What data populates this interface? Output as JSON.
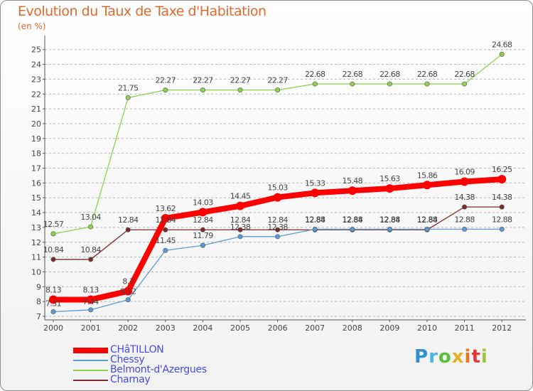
{
  "chart_data": {
    "type": "line",
    "title": "Evolution du Taux de Taxe d'Habitation",
    "ylabel": "(en %)",
    "xlabel": "",
    "x": [
      "2000",
      "2001",
      "2002",
      "2003",
      "2004",
      "2005",
      "2006",
      "2007",
      "2008",
      "2009",
      "2010",
      "2011",
      "2012"
    ],
    "ylim": [
      7,
      25
    ],
    "yticks": [
      7,
      8,
      9,
      10,
      11,
      12,
      13,
      14,
      15,
      16,
      17,
      18,
      19,
      20,
      21,
      22,
      23,
      24,
      25
    ],
    "grid": "horizontal dashed",
    "legend_position": "bottom-left",
    "series": [
      {
        "name": "CHâTILLON",
        "color": "#ff0000",
        "values": [
          8.13,
          8.13,
          8.7,
          13.62,
          14.03,
          14.45,
          15.03,
          15.33,
          15.48,
          15.63,
          15.86,
          16.09,
          16.25
        ],
        "labels": [
          "8.13",
          "8.13",
          "8.7",
          "13.62",
          "14.03",
          "14.45",
          "15.03",
          "15.33",
          "15.48",
          "15.63",
          "15.86",
          "16.09",
          "16.25"
        ]
      },
      {
        "name": "Chessy",
        "color": "#5b9bd5",
        "values": [
          7.31,
          7.44,
          8.12,
          11.45,
          11.79,
          12.38,
          12.38,
          12.88,
          12.88,
          12.88,
          12.88,
          12.88,
          12.88
        ],
        "labels": [
          "7.31",
          "7.44",
          "8.12",
          "11.45",
          "11.79",
          "12.38",
          "12.38",
          "12.88",
          "12.88",
          "12.88",
          "12.88",
          "12.88",
          "12.88"
        ]
      },
      {
        "name": "Belmont-d'Azergues",
        "color": "#8fd14f",
        "values": [
          12.57,
          13.04,
          21.75,
          22.27,
          22.27,
          22.27,
          22.27,
          22.68,
          22.68,
          22.68,
          22.68,
          22.68,
          24.68
        ],
        "labels": [
          "12.57",
          "13.04",
          "21.75",
          "22.27",
          "22.27",
          "22.27",
          "22.27",
          "22.68",
          "22.68",
          "22.68",
          "22.68",
          "22.68",
          "24.68"
        ]
      },
      {
        "name": "Charnay",
        "color": "#7b2b2b",
        "values": [
          10.84,
          10.84,
          12.84,
          12.84,
          12.84,
          12.84,
          12.84,
          12.84,
          12.84,
          12.84,
          12.84,
          14.38,
          14.38
        ],
        "labels": [
          "10.84",
          "10.84",
          "12.84",
          "12.84",
          "12.84",
          "12.84",
          "12.84",
          "12.84",
          "12.84",
          "12.84",
          "12.84",
          "14.38",
          "14.38"
        ]
      }
    ]
  },
  "brand": {
    "letters": [
      "P",
      "r",
      "o",
      "x",
      "i",
      "t",
      "i"
    ]
  }
}
